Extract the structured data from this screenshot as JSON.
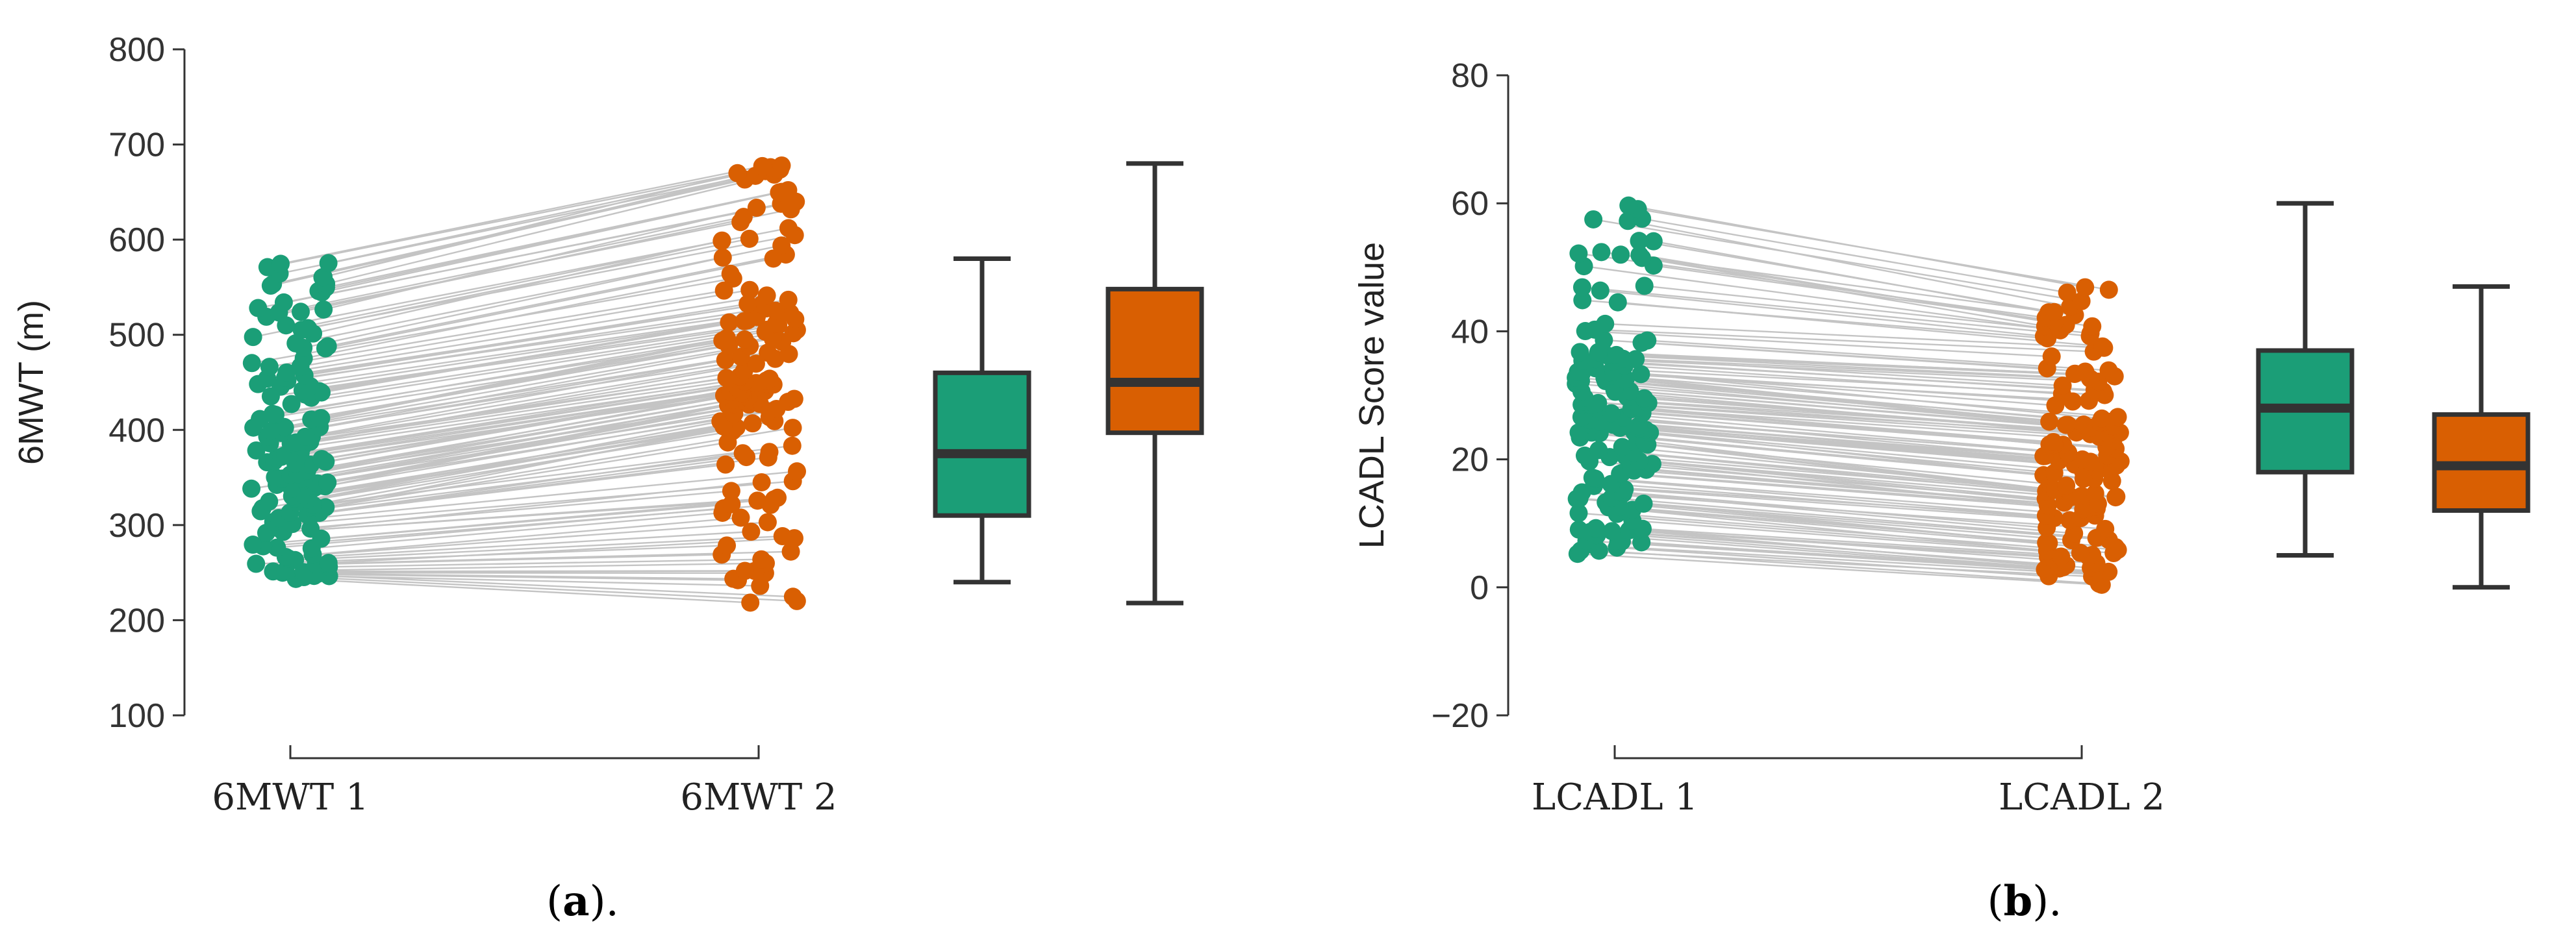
{
  "colors": {
    "green": "#1b9e77",
    "orange": "#d95f02",
    "pair_line": "#c4c4c4",
    "axis": "#333333"
  },
  "panels": [
    {
      "caption_letter": "a",
      "caption_suffix": ").",
      "caption_prefix": "("
    },
    {
      "caption_letter": "b",
      "caption_suffix": ").",
      "caption_prefix": "("
    }
  ],
  "chart_data": [
    {
      "type": "scatter",
      "subtype": "paired dot plot with box plots",
      "ylabel": "6MWT (m)",
      "ylim": [
        100,
        800
      ],
      "yticks": [
        100,
        200,
        300,
        400,
        500,
        600,
        700,
        800
      ],
      "categories": [
        "6MWT 1",
        "6MWT 2"
      ],
      "grid": false,
      "n_pairs": 140,
      "pair_seed": 11,
      "series": [
        {
          "name": "6MWT 1",
          "color": "#1b9e77",
          "min": 240,
          "q1": 310,
          "median": 375,
          "q3": 460,
          "max": 580
        },
        {
          "name": "6MWT 2",
          "color": "#d95f02",
          "min": 218,
          "q1": 397,
          "median": 450,
          "q3": 548,
          "max": 680
        }
      ]
    },
    {
      "type": "scatter",
      "subtype": "paired dot plot with box plots",
      "ylabel": "LCADL Score value",
      "ylim": [
        -20,
        80
      ],
      "yticks": [
        -20,
        0,
        20,
        40,
        60,
        80
      ],
      "ytick_labels": [
        "−20",
        "0",
        "20",
        "40",
        "60",
        "80"
      ],
      "categories": [
        "LCADL 1",
        "LCADL 2"
      ],
      "grid": false,
      "n_pairs": 140,
      "pair_seed": 23,
      "series": [
        {
          "name": "LCADL 1",
          "color": "#1b9e77",
          "min": 5,
          "q1": 18,
          "median": 28,
          "q3": 37,
          "max": 60
        },
        {
          "name": "LCADL 2",
          "color": "#d95f02",
          "min": 0,
          "q1": 12,
          "median": 19,
          "q3": 27,
          "max": 47
        }
      ]
    }
  ]
}
